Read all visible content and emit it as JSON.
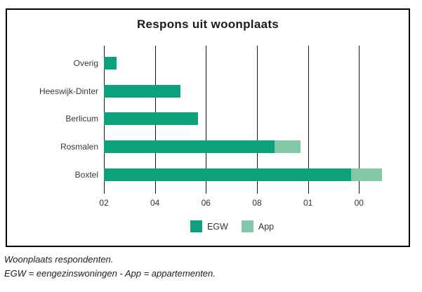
{
  "title": "Respons uit woonplaats",
  "caption": {
    "line1": "Woonplaats respondenten.",
    "line2": "EGW = eengezinswoningen - App = appartementen."
  },
  "legend": {
    "items": [
      {
        "label": "EGW",
        "color": "#0aa17b"
      },
      {
        "label": "App",
        "color": "#84c7a8"
      }
    ]
  },
  "colors": {
    "egw": "#0aa17b",
    "app": "#84c7a8",
    "grid": "#1a1a1a",
    "border": "#000000",
    "axis_text": "#383844"
  },
  "chart_data": {
    "type": "bar",
    "orientation": "horizontal",
    "title": "Respons uit woonplaats",
    "categories": [
      "Overig",
      "Heeswijk-Dinter",
      "Berlicum",
      "Rosmalen",
      "Boxtel"
    ],
    "series": [
      {
        "name": "EGW",
        "values": [
          5,
          30,
          37,
          67,
          97
        ]
      },
      {
        "name": "App",
        "values": [
          0,
          0,
          0,
          10,
          12
        ]
      }
    ],
    "stacked": true,
    "x_tick_labels": [
      "02",
      "04",
      "06",
      "08",
      "01",
      "00"
    ],
    "x_tick_interval_units": 20,
    "xlim": [
      0,
      118
    ],
    "grid": true,
    "legend_position": "bottom",
    "xlabel": "",
    "ylabel": ""
  }
}
